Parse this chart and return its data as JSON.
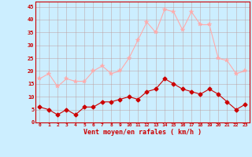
{
  "x": [
    0,
    1,
    2,
    3,
    4,
    5,
    6,
    7,
    8,
    9,
    10,
    11,
    12,
    13,
    14,
    15,
    16,
    17,
    18,
    19,
    20,
    21,
    22,
    23
  ],
  "wind_avg": [
    6,
    5,
    3,
    5,
    3,
    6,
    6,
    8,
    8,
    9,
    10,
    9,
    12,
    13,
    17,
    15,
    13,
    12,
    11,
    13,
    11,
    8,
    5,
    7
  ],
  "wind_gust": [
    17,
    19,
    14,
    17,
    16,
    16,
    20,
    22,
    19,
    20,
    25,
    32,
    39,
    35,
    44,
    43,
    36,
    43,
    38,
    38,
    25,
    24,
    19,
    20
  ],
  "bg_color": "#cceeff",
  "grid_color": "#bb9999",
  "avg_color": "#cc0000",
  "gust_color": "#ffaaaa",
  "xlabel": "Vent moyen/en rafales ( km/h )",
  "xlabel_color": "#cc0000",
  "tick_color": "#cc0000",
  "ylim": [
    0,
    47
  ],
  "yticks": [
    0,
    5,
    10,
    15,
    20,
    25,
    30,
    35,
    40,
    45
  ],
  "xticks": [
    0,
    1,
    2,
    3,
    4,
    5,
    6,
    7,
    8,
    9,
    10,
    11,
    12,
    13,
    14,
    15,
    16,
    17,
    18,
    19,
    20,
    21,
    22,
    23
  ]
}
